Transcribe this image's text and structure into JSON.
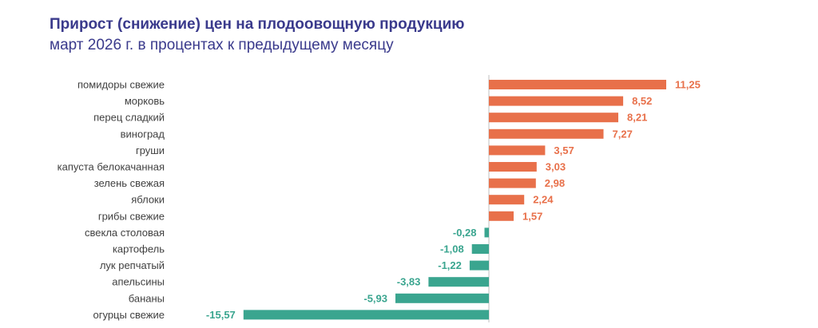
{
  "chart_data": {
    "type": "bar",
    "orientation": "horizontal",
    "title": "Прирост (снижение) цен на плодоовощную продукцию",
    "subtitle": "март 2026 г. в процентах к предыдущему месяцу",
    "categories": [
      "помидоры свежие",
      "морковь",
      "перец сладкий",
      "виноград",
      "груши",
      "капуста белокачанная",
      "зелень свежая",
      "яблоки",
      "грибы свежие",
      "свекла столовая",
      "картофель",
      "лук репчатый",
      "апельсины",
      "бананы",
      "огурцы свежие"
    ],
    "values": [
      11.25,
      8.52,
      8.21,
      7.27,
      3.57,
      3.03,
      2.98,
      2.24,
      1.57,
      -0.28,
      -1.08,
      -1.22,
      -3.83,
      -5.93,
      -15.57
    ],
    "value_labels": [
      "11,25",
      "8,52",
      "8,21",
      "7,27",
      "3,57",
      "3,03",
      "2,98",
      "2,24",
      "1,57",
      "-0,28",
      "-1,08",
      "-1,22",
      "-3,83",
      "-5,93",
      "-15,57"
    ],
    "xlim": [
      -15.57,
      11.25
    ],
    "grid": false,
    "colors": {
      "positive": "#e8704a",
      "negative": "#3aa58f",
      "title": "#3a3a8c"
    }
  }
}
